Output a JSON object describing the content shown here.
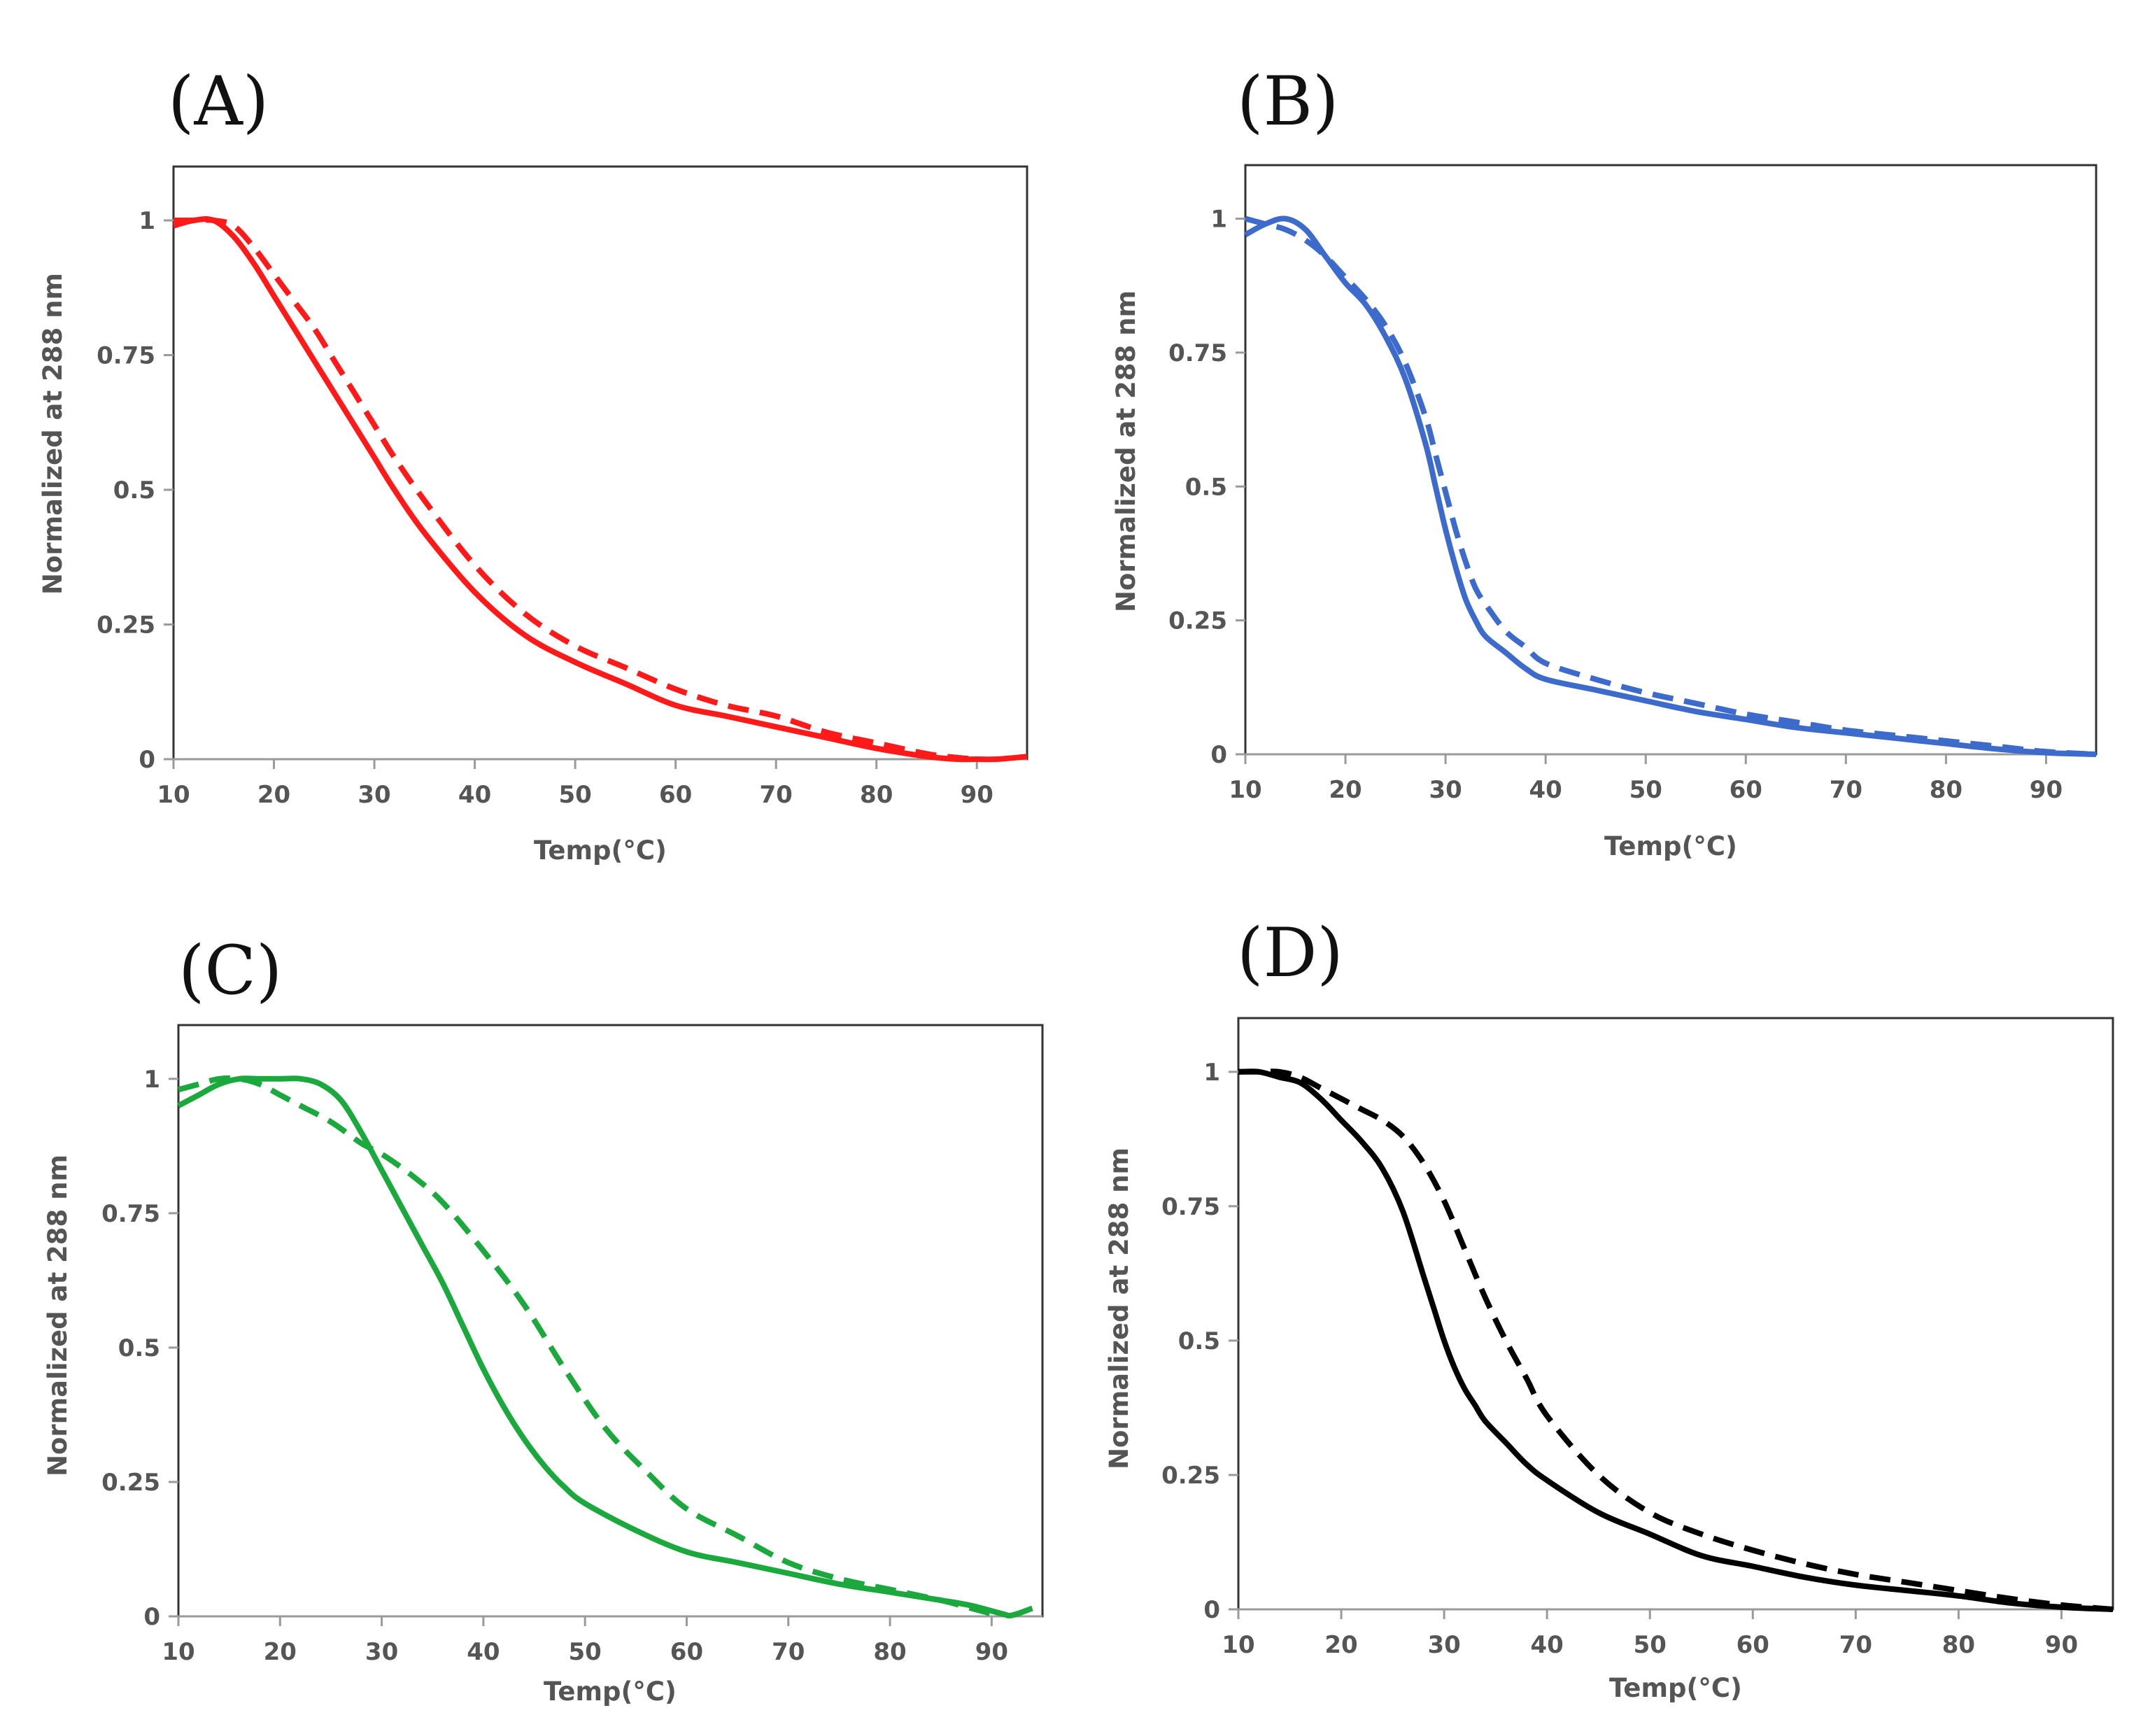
{
  "figure": {
    "description": "Four panels of normalized absorbance melting curves"
  },
  "chart_data": [
    {
      "panel": "(A)",
      "type": "line",
      "color": "#ff1a1a",
      "xlabel": "Temp(°C)",
      "ylabel": "Normalized at 288 nm",
      "xlim": [
        10,
        95
      ],
      "ylim": [
        0,
        1.1
      ],
      "xticks": [
        10,
        20,
        30,
        40,
        50,
        60,
        70,
        80,
        90
      ],
      "yticks": [
        0,
        0.25,
        0.5,
        0.75,
        1
      ],
      "ytick_labels": [
        "0",
        "0.25",
        "0.5",
        "0.75",
        "1"
      ],
      "series": [
        {
          "name": "solid",
          "style": "solid",
          "x": [
            10,
            12,
            14,
            16,
            18,
            20,
            22,
            24,
            26,
            28,
            30,
            32,
            35,
            40,
            45,
            50,
            55,
            60,
            65,
            70,
            75,
            80,
            85,
            88,
            90,
            92,
            95
          ],
          "y": [
            0.99,
            1.0,
            1.0,
            0.97,
            0.92,
            0.86,
            0.8,
            0.74,
            0.68,
            0.62,
            0.56,
            0.5,
            0.42,
            0.31,
            0.23,
            0.18,
            0.14,
            0.1,
            0.08,
            0.06,
            0.04,
            0.02,
            0.005,
            0.0,
            0.0,
            0.0,
            0.005
          ]
        },
        {
          "name": "dashed",
          "style": "dashed",
          "x": [
            10,
            12,
            14,
            16,
            18,
            20,
            22,
            24,
            26,
            28,
            30,
            32,
            35,
            40,
            45,
            50,
            55,
            60,
            65,
            70,
            75,
            80,
            85,
            88,
            90
          ],
          "y": [
            1.0,
            1.0,
            1.0,
            0.99,
            0.95,
            0.9,
            0.85,
            0.8,
            0.74,
            0.68,
            0.62,
            0.56,
            0.48,
            0.36,
            0.27,
            0.21,
            0.17,
            0.13,
            0.1,
            0.08,
            0.05,
            0.03,
            0.01,
            0.003,
            0.0
          ]
        }
      ]
    },
    {
      "panel": "(B)",
      "type": "line",
      "color": "#3c6bcb",
      "xlabel": "Temp(°C)",
      "ylabel": "Normalized at 288 nm",
      "xlim": [
        10,
        95
      ],
      "ylim": [
        0,
        1.1
      ],
      "xticks": [
        10,
        20,
        30,
        40,
        50,
        60,
        70,
        80,
        90
      ],
      "yticks": [
        0,
        0.25,
        0.5,
        0.75,
        1
      ],
      "ytick_labels": [
        "0",
        "0.25",
        "0.5",
        "0.75",
        "1"
      ],
      "series": [
        {
          "name": "solid",
          "style": "solid",
          "x": [
            10,
            12,
            14,
            16,
            18,
            20,
            22,
            24,
            26,
            28,
            29,
            30,
            31,
            32,
            33,
            34,
            36,
            38,
            40,
            45,
            50,
            55,
            60,
            65,
            70,
            75,
            80,
            85,
            90,
            95
          ],
          "y": [
            0.97,
            0.99,
            1.0,
            0.98,
            0.93,
            0.88,
            0.84,
            0.78,
            0.7,
            0.58,
            0.5,
            0.42,
            0.35,
            0.29,
            0.25,
            0.22,
            0.19,
            0.16,
            0.14,
            0.12,
            0.1,
            0.08,
            0.065,
            0.05,
            0.04,
            0.03,
            0.02,
            0.01,
            0.003,
            0.0
          ]
        },
        {
          "name": "dashed",
          "style": "dashed",
          "x": [
            10,
            12,
            14,
            16,
            18,
            20,
            22,
            24,
            26,
            28,
            29,
            30,
            31,
            32,
            33,
            34,
            36,
            38,
            40,
            45,
            50,
            55,
            60,
            65,
            70,
            75,
            80,
            85,
            90,
            95
          ],
          "y": [
            1.0,
            0.99,
            0.98,
            0.96,
            0.93,
            0.89,
            0.85,
            0.8,
            0.73,
            0.63,
            0.56,
            0.49,
            0.42,
            0.36,
            0.31,
            0.28,
            0.23,
            0.2,
            0.17,
            0.14,
            0.115,
            0.095,
            0.075,
            0.06,
            0.045,
            0.035,
            0.025,
            0.015,
            0.005,
            0.0
          ]
        }
      ]
    },
    {
      "panel": "(C)",
      "type": "line",
      "color": "#1ba83c",
      "xlabel": "Temp(°C)",
      "ylabel": "Normalized at 288 nm",
      "xlim": [
        10,
        95
      ],
      "ylim": [
        0,
        1.1
      ],
      "xticks": [
        10,
        20,
        30,
        40,
        50,
        60,
        70,
        80,
        90
      ],
      "yticks": [
        0,
        0.25,
        0.5,
        0.75,
        1
      ],
      "ytick_labels": [
        "0",
        "0.25",
        "0.5",
        "0.75",
        "1"
      ],
      "series": [
        {
          "name": "solid",
          "style": "solid",
          "x": [
            10,
            12,
            14,
            16,
            18,
            20,
            22,
            24,
            26,
            28,
            30,
            32,
            34,
            36,
            38,
            40,
            42,
            44,
            46,
            48,
            50,
            55,
            60,
            65,
            70,
            75,
            80,
            85,
            88,
            91,
            92,
            94
          ],
          "y": [
            0.95,
            0.97,
            0.99,
            1.0,
            1.0,
            1.0,
            1.0,
            0.99,
            0.96,
            0.9,
            0.83,
            0.76,
            0.69,
            0.62,
            0.54,
            0.46,
            0.39,
            0.33,
            0.28,
            0.24,
            0.21,
            0.16,
            0.12,
            0.1,
            0.08,
            0.06,
            0.045,
            0.03,
            0.02,
            0.005,
            0.002,
            0.015
          ]
        },
        {
          "name": "dashed",
          "style": "dashed",
          "x": [
            10,
            12,
            14,
            16,
            18,
            20,
            22,
            25,
            28,
            30,
            33,
            36,
            40,
            44,
            48,
            52,
            56,
            60,
            65,
            70,
            75,
            80,
            85,
            88,
            90
          ],
          "y": [
            0.98,
            0.99,
            1.0,
            1.0,
            0.99,
            0.97,
            0.95,
            0.92,
            0.88,
            0.86,
            0.82,
            0.77,
            0.68,
            0.58,
            0.46,
            0.35,
            0.27,
            0.2,
            0.15,
            0.1,
            0.07,
            0.05,
            0.03,
            0.015,
            0.005
          ]
        }
      ]
    },
    {
      "panel": "(D)",
      "type": "line",
      "color": "#000000",
      "xlabel": "Temp(°C)",
      "ylabel": "Normalized at 288 nm",
      "xlim": [
        10,
        95
      ],
      "ylim": [
        0,
        1.1
      ],
      "xticks": [
        10,
        20,
        30,
        40,
        50,
        60,
        70,
        80,
        90
      ],
      "yticks": [
        0,
        0.25,
        0.5,
        0.75,
        1
      ],
      "ytick_labels": [
        "0",
        "0.25",
        "0.5",
        "0.75",
        "1"
      ],
      "series": [
        {
          "name": "solid",
          "style": "solid",
          "x": [
            10,
            12,
            14,
            16,
            18,
            20,
            22,
            24,
            26,
            28,
            29,
            30,
            31,
            32,
            33,
            34,
            36,
            38,
            40,
            45,
            50,
            55,
            60,
            65,
            70,
            75,
            80,
            85,
            90,
            95
          ],
          "y": [
            1.0,
            1.0,
            0.99,
            0.98,
            0.95,
            0.91,
            0.87,
            0.82,
            0.74,
            0.62,
            0.56,
            0.5,
            0.45,
            0.41,
            0.38,
            0.35,
            0.31,
            0.27,
            0.24,
            0.18,
            0.14,
            0.1,
            0.08,
            0.06,
            0.045,
            0.035,
            0.025,
            0.012,
            0.004,
            0.0
          ]
        },
        {
          "name": "dashed",
          "style": "dashed",
          "x": [
            10,
            12,
            14,
            16,
            18,
            20,
            22,
            24,
            26,
            28,
            30,
            32,
            34,
            36,
            38,
            40,
            45,
            50,
            55,
            60,
            65,
            70,
            75,
            80,
            85,
            90,
            95
          ],
          "y": [
            1.0,
            1.0,
            1.0,
            0.99,
            0.97,
            0.95,
            0.93,
            0.91,
            0.88,
            0.83,
            0.76,
            0.67,
            0.58,
            0.5,
            0.43,
            0.36,
            0.25,
            0.18,
            0.14,
            0.11,
            0.085,
            0.065,
            0.05,
            0.035,
            0.02,
            0.008,
            0.0
          ]
        }
      ]
    }
  ]
}
